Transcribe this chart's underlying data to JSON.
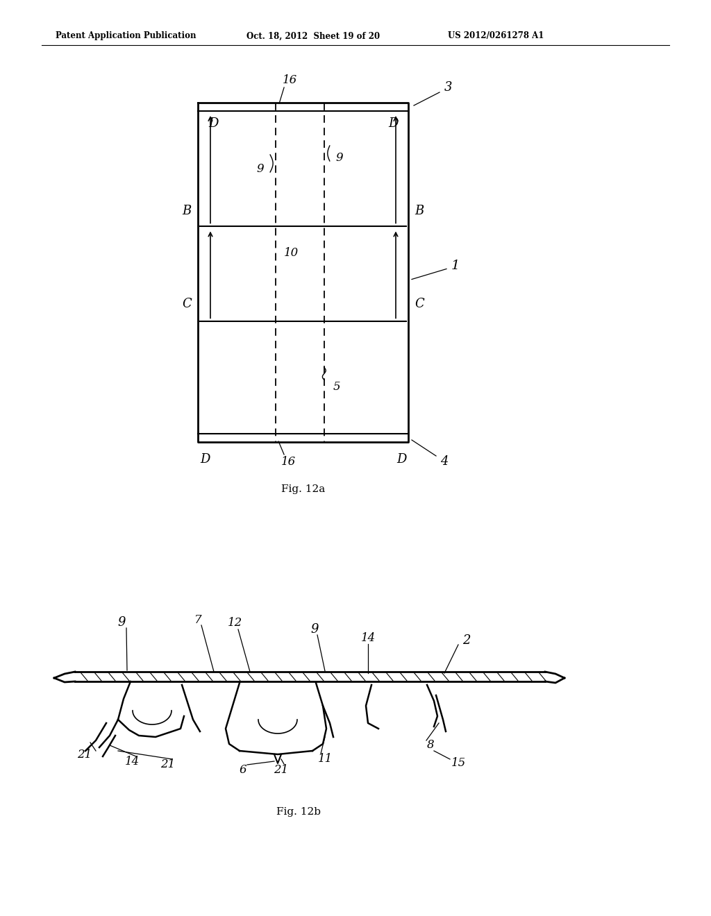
{
  "bg_color": "#ffffff",
  "header_text": "Patent Application Publication",
  "header_date": "Oct. 18, 2012  Sheet 19 of 20",
  "header_patent": "US 2012/0261278 A1",
  "fig12a_label": "Fig. 12a",
  "fig12b_label": "Fig. 12b",
  "page_width": 10.24,
  "page_height": 13.2
}
